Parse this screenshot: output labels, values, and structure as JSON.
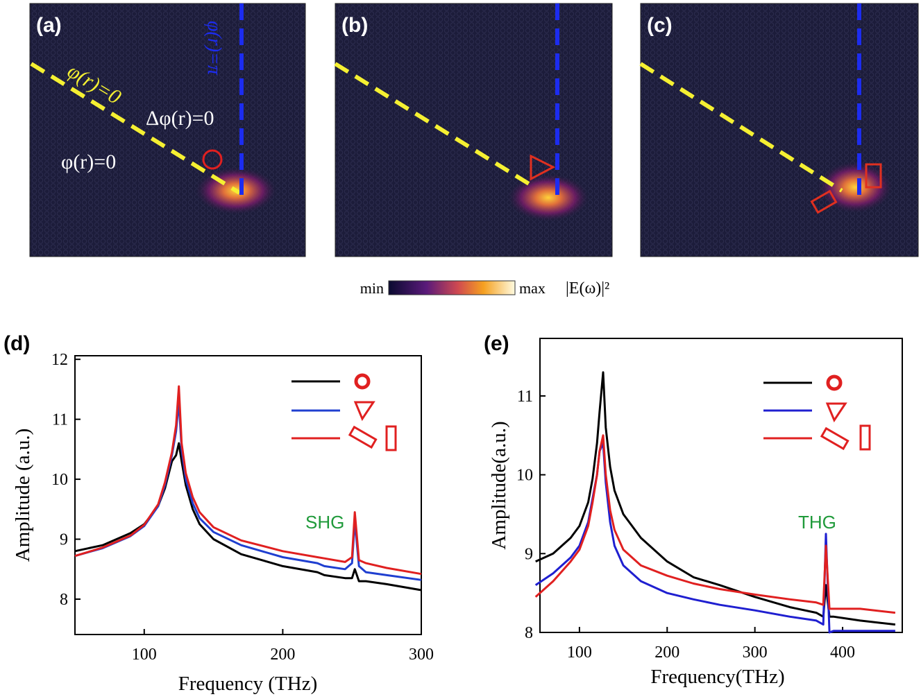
{
  "panels": [
    {
      "label": "(a)",
      "annotations": [
        "φ(r)=0",
        "Δφ(r)=0",
        "φ(r)=0",
        "φ(r)=π"
      ]
    },
    {
      "label": "(b)"
    },
    {
      "label": "(c)"
    }
  ],
  "colorbar": {
    "min_label": "min",
    "max_label": "max",
    "quantity": "|E(ω)|²"
  },
  "chart_data": [
    {
      "type": "line",
      "panel_label": "(d)",
      "xlabel": "Frequency (THz)",
      "ylabel": "Amplitude (a.u.)",
      "annotation": "SHG",
      "x": [
        50,
        70,
        90,
        100,
        110,
        115,
        120,
        123,
        125,
        127,
        130,
        135,
        140,
        150,
        170,
        200,
        225,
        230,
        245,
        250,
        252,
        255,
        260,
        275,
        300
      ],
      "series": [
        {
          "color": "#000000",
          "values": [
            8.8,
            8.9,
            9.1,
            9.25,
            9.55,
            9.85,
            10.3,
            10.4,
            10.6,
            10.3,
            9.9,
            9.5,
            9.25,
            9.0,
            8.75,
            8.55,
            8.45,
            8.4,
            8.35,
            8.35,
            8.5,
            8.3,
            8.3,
            8.25,
            8.15
          ]
        },
        {
          "color": "#1f3fd0",
          "values": [
            8.72,
            8.85,
            9.05,
            9.22,
            9.55,
            9.9,
            10.4,
            10.8,
            11.3,
            10.5,
            10.0,
            9.6,
            9.35,
            9.12,
            8.9,
            8.7,
            8.6,
            8.55,
            8.5,
            8.6,
            9.3,
            8.55,
            8.45,
            8.4,
            8.32
          ]
        },
        {
          "color": "#e02020",
          "values": [
            8.72,
            8.86,
            9.06,
            9.24,
            9.58,
            9.95,
            10.45,
            10.9,
            11.55,
            10.6,
            10.1,
            9.7,
            9.45,
            9.2,
            8.98,
            8.8,
            8.7,
            8.68,
            8.62,
            8.7,
            9.45,
            8.65,
            8.6,
            8.52,
            8.42
          ]
        }
      ],
      "xlim": [
        50,
        300
      ],
      "xticks": [
        100,
        200,
        300
      ],
      "ylim": [
        7.41,
        12.06
      ],
      "yticks": [
        8,
        9,
        10,
        11,
        12
      ]
    },
    {
      "type": "line",
      "panel_label": "(e)",
      "xlabel": "Frequency(THz)",
      "ylabel": "Amplitude(a.u.)",
      "annotation": "THG",
      "x": [
        50,
        70,
        90,
        100,
        110,
        115,
        120,
        123,
        127,
        130,
        135,
        140,
        150,
        170,
        200,
        230,
        260,
        300,
        340,
        370,
        378,
        381,
        385,
        390,
        420,
        460
      ],
      "series": [
        {
          "color": "#000000",
          "values": [
            8.9,
            9.0,
            9.2,
            9.35,
            9.65,
            9.95,
            10.4,
            10.8,
            11.3,
            10.6,
            10.1,
            9.8,
            9.5,
            9.2,
            8.9,
            8.7,
            8.6,
            8.45,
            8.32,
            8.25,
            8.2,
            8.6,
            8.2,
            8.2,
            8.15,
            8.1
          ]
        },
        {
          "color": "#1f1fd0",
          "values": [
            8.6,
            8.75,
            8.95,
            9.1,
            9.4,
            9.7,
            10.0,
            10.3,
            10.4,
            9.9,
            9.4,
            9.1,
            8.85,
            8.65,
            8.5,
            8.42,
            8.35,
            8.28,
            8.2,
            8.15,
            8.1,
            9.25,
            8.0,
            8.02,
            8.02,
            8.02
          ]
        },
        {
          "color": "#e02020",
          "values": [
            8.45,
            8.65,
            8.9,
            9.05,
            9.35,
            9.65,
            10.0,
            10.3,
            10.5,
            10.0,
            9.55,
            9.3,
            9.05,
            8.85,
            8.72,
            8.62,
            8.55,
            8.48,
            8.42,
            8.38,
            8.35,
            9.1,
            8.3,
            8.3,
            8.3,
            8.25
          ]
        }
      ],
      "xlim": [
        55,
        468
      ],
      "xticks": [
        100,
        200,
        300,
        400
      ],
      "ylim": [
        8,
        11.73
      ],
      "yticks": [
        8,
        9,
        10,
        11
      ]
    }
  ]
}
